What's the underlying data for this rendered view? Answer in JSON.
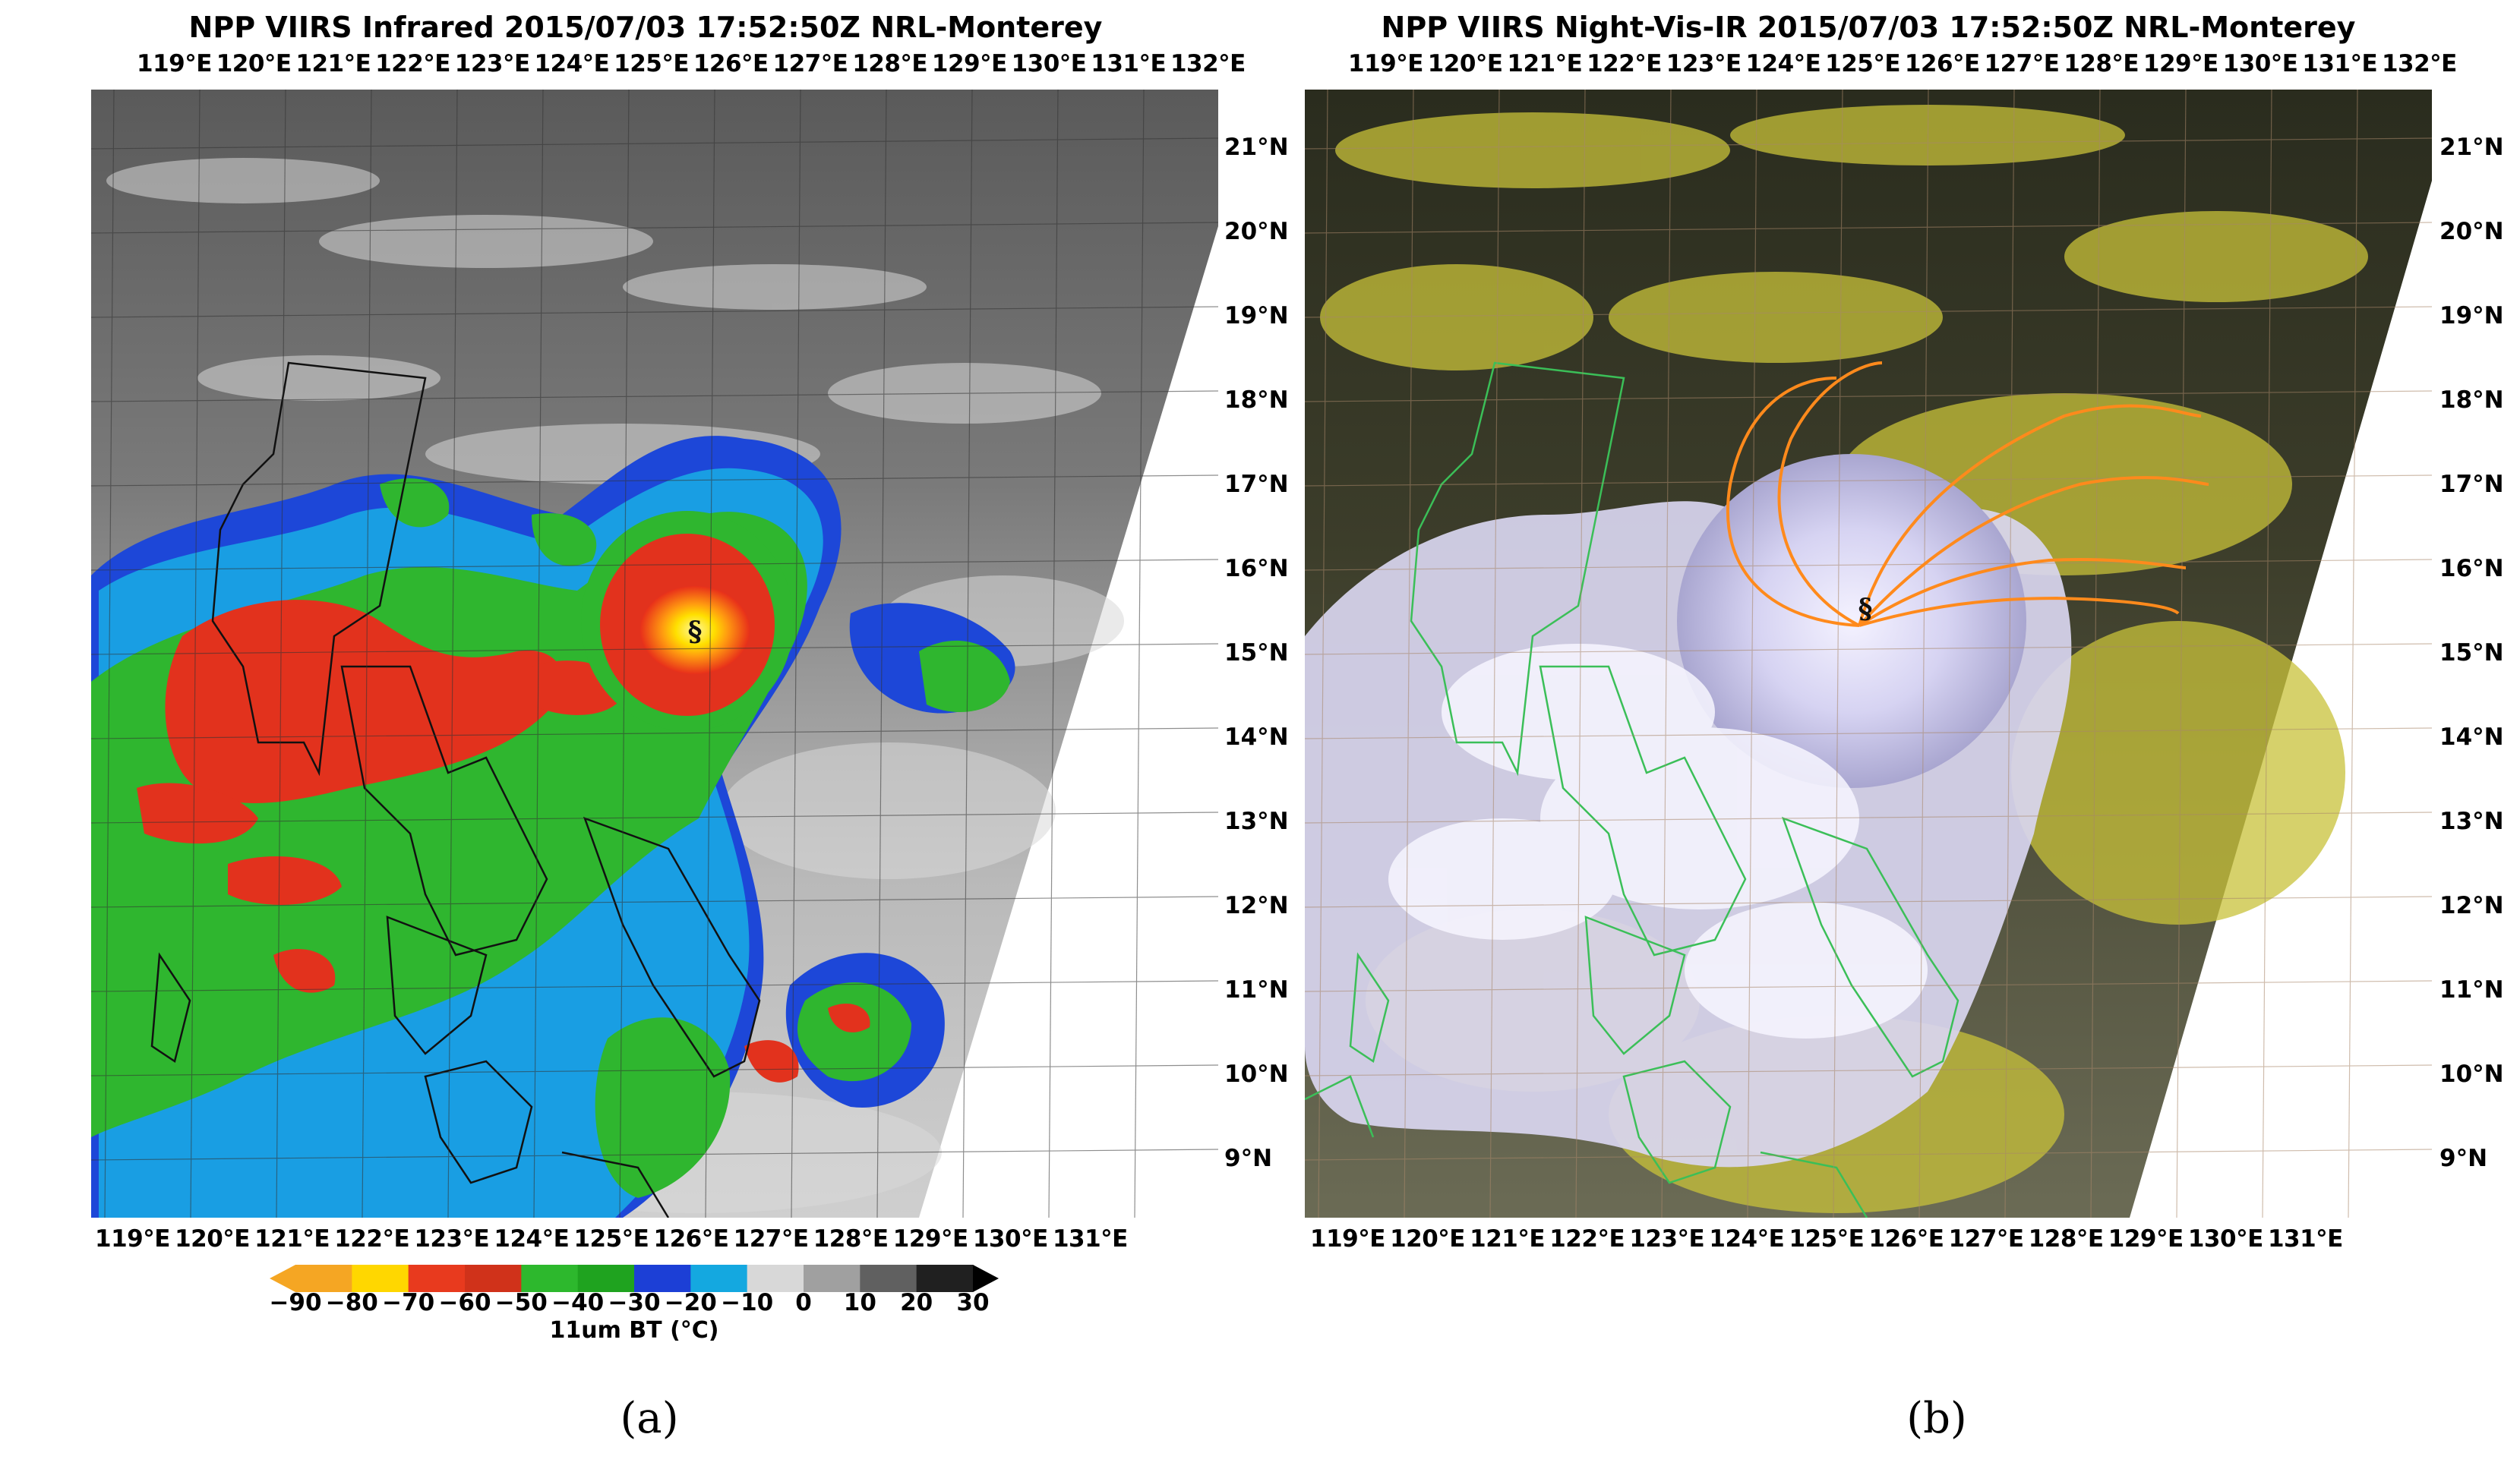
{
  "panel_a": {
    "title": "NPP VIIRS Infrared 2015/07/03 17:52:50Z NRL-Monterey",
    "lon_labels": [
      "119°E",
      "120°E",
      "121°E",
      "122°E",
      "123°E",
      "124°E",
      "125°E",
      "126°E",
      "127°E",
      "128°E",
      "129°E",
      "130°E",
      "131°E",
      "132°E"
    ],
    "lon_labels_bottom": [
      "119°E",
      "120°E",
      "121°E",
      "122°E",
      "123°E",
      "124°E",
      "125°E",
      "126°E",
      "127°E",
      "128°E",
      "129°E",
      "130°E",
      "131°E"
    ],
    "lat_labels": [
      "21°N",
      "20°N",
      "19°N",
      "18°N",
      "17°N",
      "16°N",
      "15°N",
      "14°N",
      "13°N",
      "12°N",
      "11°N",
      "10°N",
      "9°N"
    ],
    "storm_symbol": "§",
    "colorbar": {
      "ticks": [
        "−90",
        "−80",
        "−70",
        "−60",
        "−50",
        "−40",
        "−30",
        "−20",
        "−10",
        "0",
        "10",
        "20",
        "30"
      ],
      "label": "11um BT (°C)",
      "colors": [
        "#f5a623",
        "#ffd700",
        "#e83a1e",
        "#d0321a",
        "#2db82d",
        "#1fa31f",
        "#1c3fd6",
        "#14a8e0",
        "#d8d8d8",
        "#a0a0a0",
        "#606060",
        "#202020"
      ]
    },
    "caption": "(a)"
  },
  "panel_b": {
    "title": "NPP VIIRS Night-Vis-IR 2015/07/03 17:52:50Z NRL-Monterey",
    "lon_labels": [
      "119°E",
      "120°E",
      "121°E",
      "122°E",
      "123°E",
      "124°E",
      "125°E",
      "126°E",
      "127°E",
      "128°E",
      "129°E",
      "130°E",
      "131°E",
      "132°E"
    ],
    "lon_labels_bottom": [
      "119°E",
      "120°E",
      "121°E",
      "122°E",
      "123°E",
      "124°E",
      "125°E",
      "126°E",
      "127°E",
      "128°E",
      "129°E",
      "130°E",
      "131°E"
    ],
    "lat_labels": [
      "21°N",
      "20°N",
      "19°N",
      "18°N",
      "17°N",
      "16°N",
      "15°N",
      "14°N",
      "13°N",
      "12°N",
      "11°N",
      "10°N",
      "9°N"
    ],
    "storm_symbol": "§",
    "caption": "(b)"
  }
}
